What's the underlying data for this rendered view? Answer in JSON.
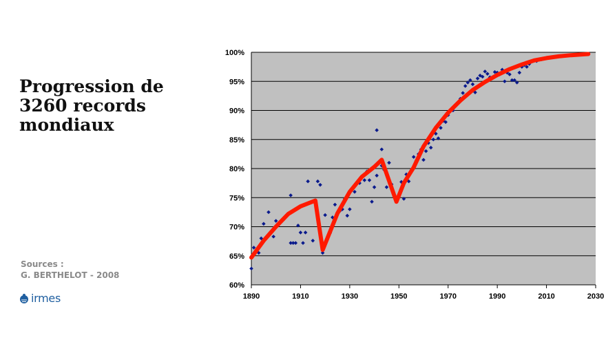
{
  "title_lines": [
    "Progression de",
    "3260 records",
    "mondiaux"
  ],
  "sources": {
    "label": "Sources :",
    "author": "G. BERTHELOT - 2008"
  },
  "logo": {
    "text": "irmes",
    "icon": "logo-mark-icon"
  },
  "colors": {
    "plot_bg": "#c0c0c0",
    "curve": "#ff1a00",
    "points": "#0a1a8c"
  },
  "chart_data": {
    "type": "scatter",
    "title": "",
    "xlabel": "",
    "ylabel": "",
    "xlim": [
      1890,
      2030
    ],
    "ylim": [
      60,
      100
    ],
    "x_ticks": [
      "1890",
      "1910",
      "1930",
      "1950",
      "1970",
      "1990",
      "2010",
      "2030"
    ],
    "y_ticks": [
      "60%",
      "65%",
      "70%",
      "75%",
      "80%",
      "85%",
      "90%",
      "95%",
      "100%"
    ],
    "grid": "horizontal",
    "series": [
      {
        "kind": "points",
        "points": [
          [
            1890,
            62.8
          ],
          [
            1891,
            66.4
          ],
          [
            1893,
            65.5
          ],
          [
            1894,
            68.0
          ],
          [
            1895,
            70.5
          ],
          [
            1897,
            72.5
          ],
          [
            1899,
            68.3
          ],
          [
            1900,
            71.0
          ],
          [
            1906,
            67.2
          ],
          [
            1906,
            75.4
          ],
          [
            1907,
            67.2
          ],
          [
            1908,
            67.2
          ],
          [
            1909,
            70.2
          ],
          [
            1910,
            69.0
          ],
          [
            1911,
            67.2
          ],
          [
            1912,
            69.0
          ],
          [
            1913,
            77.8
          ],
          [
            1915,
            67.6
          ],
          [
            1916,
            74.5
          ],
          [
            1917,
            77.8
          ],
          [
            1918,
            77.2
          ],
          [
            1919,
            65.5
          ],
          [
            1920,
            72.0
          ],
          [
            1922,
            68.9
          ],
          [
            1923,
            71.6
          ],
          [
            1924,
            73.8
          ],
          [
            1926,
            72.7
          ],
          [
            1927,
            73.0
          ],
          [
            1928,
            74.8
          ],
          [
            1929,
            71.9
          ],
          [
            1930,
            73.0
          ],
          [
            1932,
            76.0
          ],
          [
            1934,
            77.5
          ],
          [
            1936,
            78.0
          ],
          [
            1937,
            79.5
          ],
          [
            1938,
            78.0
          ],
          [
            1939,
            74.3
          ],
          [
            1940,
            76.8
          ],
          [
            1941,
            78.8
          ],
          [
            1941,
            86.6
          ],
          [
            1943,
            80.5
          ],
          [
            1943,
            83.3
          ],
          [
            1944,
            79.8
          ],
          [
            1945,
            76.8
          ],
          [
            1946,
            81.0
          ],
          [
            1947,
            77.3
          ],
          [
            1949,
            74.3
          ],
          [
            1951,
            77.7
          ],
          [
            1952,
            74.8
          ],
          [
            1953,
            79.0
          ],
          [
            1954,
            77.8
          ],
          [
            1956,
            82.0
          ],
          [
            1957,
            81.3
          ],
          [
            1958,
            82.5
          ],
          [
            1959,
            83.3
          ],
          [
            1960,
            81.5
          ],
          [
            1961,
            83.0
          ],
          [
            1962,
            84.4
          ],
          [
            1963,
            83.6
          ],
          [
            1964,
            85.0
          ],
          [
            1965,
            86.0
          ],
          [
            1966,
            85.2
          ],
          [
            1967,
            87.0
          ],
          [
            1968,
            88.2
          ],
          [
            1969,
            88.0
          ],
          [
            1970,
            89.2
          ],
          [
            1972,
            90.0
          ],
          [
            1973,
            90.8
          ],
          [
            1974,
            91.3
          ],
          [
            1975,
            92.0
          ],
          [
            1976,
            93.0
          ],
          [
            1977,
            94.2
          ],
          [
            1978,
            94.8
          ],
          [
            1979,
            95.2
          ],
          [
            1980,
            94.5
          ],
          [
            1981,
            93.1
          ],
          [
            1982,
            95.5
          ],
          [
            1983,
            96.0
          ],
          [
            1984,
            95.8
          ],
          [
            1985,
            96.7
          ],
          [
            1986,
            96.3
          ],
          [
            1987,
            95.7
          ],
          [
            1989,
            96.6
          ],
          [
            1990,
            96.5
          ],
          [
            1991,
            96.2
          ],
          [
            1992,
            97.0
          ],
          [
            1993,
            95.0
          ],
          [
            1994,
            96.5
          ],
          [
            1995,
            96.2
          ],
          [
            1996,
            95.2
          ],
          [
            1997,
            95.2
          ],
          [
            1998,
            94.8
          ],
          [
            1999,
            96.5
          ],
          [
            2000,
            97.5
          ],
          [
            2001,
            97.8
          ],
          [
            2002,
            97.5
          ],
          [
            2003,
            98.0
          ],
          [
            2006,
            98.5
          ],
          [
            2008,
            98.8
          ]
        ]
      },
      {
        "kind": "fit-curve",
        "points": [
          [
            1890,
            64.7
          ],
          [
            1895,
            67.6
          ],
          [
            1900,
            70.0
          ],
          [
            1905,
            72.2
          ],
          [
            1910,
            73.5
          ],
          [
            1916,
            74.5
          ],
          [
            1919,
            66.0
          ],
          [
            1925,
            72.3
          ],
          [
            1930,
            76.0
          ],
          [
            1935,
            78.6
          ],
          [
            1940,
            80.3
          ],
          [
            1943,
            81.5
          ],
          [
            1949,
            74.3
          ],
          [
            1952,
            77.5
          ],
          [
            1956,
            80.2
          ],
          [
            1960,
            83.8
          ],
          [
            1965,
            87.0
          ],
          [
            1970,
            89.6
          ],
          [
            1975,
            91.7
          ],
          [
            1980,
            93.5
          ],
          [
            1985,
            94.9
          ],
          [
            1990,
            96.1
          ],
          [
            1995,
            97.1
          ],
          [
            2000,
            97.9
          ],
          [
            2005,
            98.6
          ],
          [
            2010,
            99.0
          ],
          [
            2015,
            99.3
          ],
          [
            2020,
            99.5
          ],
          [
            2027,
            99.7
          ]
        ]
      }
    ]
  }
}
